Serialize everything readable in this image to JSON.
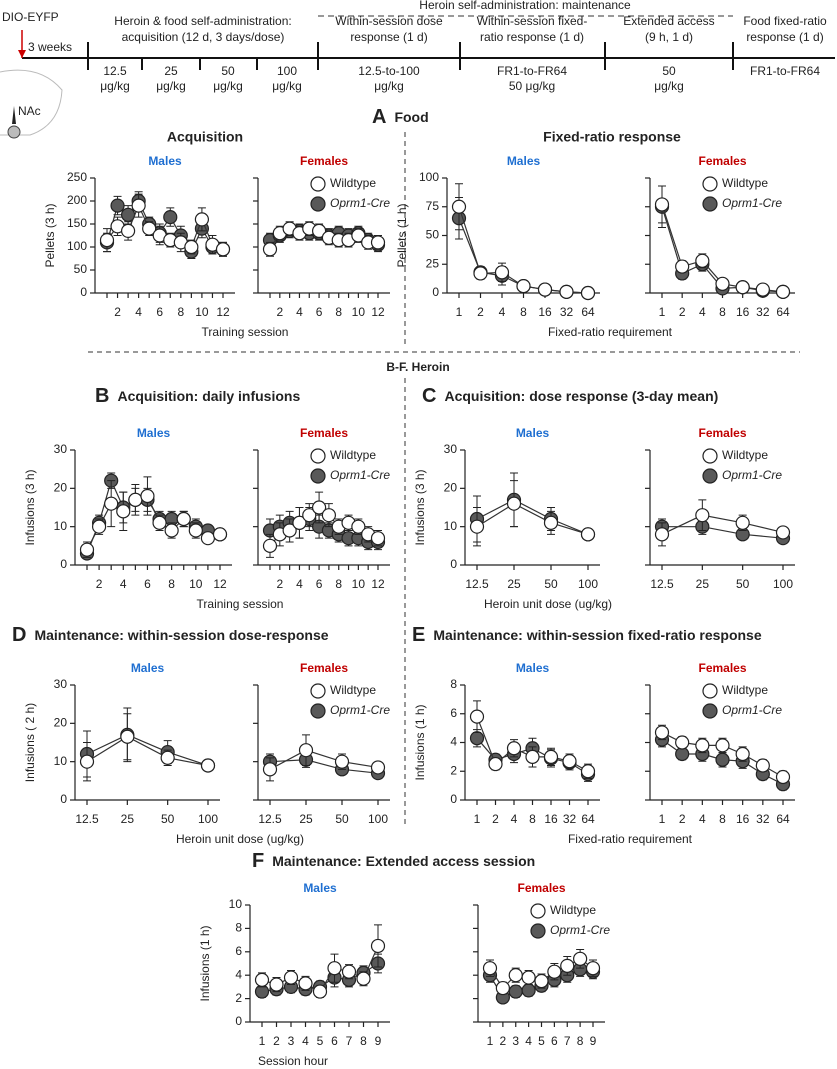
{
  "timeline": {
    "start": "DIO-EYFP",
    "weeks": "3 weeks",
    "maintenance": "Heroin self-administration: maintenance",
    "region": "NAc",
    "phases": [
      [
        "Heroin & food self-administration:",
        "acquisition (12 d, 3 days/dose)"
      ],
      [
        "Within-session dose",
        "response (1 d)"
      ],
      [
        "Within-session fixed-",
        "ratio response (1 d)"
      ],
      [
        "Extended access",
        "(9 h, 1 d)"
      ],
      [
        "Food fixed-ratio",
        "response (1 d)"
      ]
    ],
    "doses": [
      [
        "12.5",
        "μg/kg"
      ],
      [
        "25",
        "μg/kg"
      ],
      [
        "50",
        "μg/kg"
      ],
      [
        "100",
        "μg/kg"
      ],
      [
        "12.5-to-100",
        "μg/kg"
      ],
      [
        "FR1-to-FR64",
        "50 μg/kg"
      ],
      [
        "50",
        "μg/kg"
      ],
      [
        "FR1-to-FR64"
      ]
    ]
  },
  "headings": [
    {
      "letter": "A",
      "title": "Food"
    },
    {
      "letter": "B",
      "title": "Acquisition:  daily infusions"
    },
    {
      "letter": "C",
      "title": "Acquisition:  dose response (3-day mean)"
    },
    {
      "letter": "D",
      "title": "Maintenance: within-session  dose-response"
    },
    {
      "letter": "E",
      "title": "Maintenance: within-session  fixed-ratio response"
    },
    {
      "letter": "F",
      "title": "Maintenance: Extended access session"
    }
  ],
  "subtitles": [
    "Acquisition",
    "Fixed-ratio response"
  ],
  "heroin": "B-F. Heroin",
  "chart_data": [
    {
      "type": "line",
      "title": "Males",
      "title_color": "#1f6fd1",
      "ylabel": "Pellets (3 h)",
      "xlabel": "Training session",
      "categories": [
        null,
        "2",
        null,
        "4",
        null,
        "6",
        null,
        "8",
        null,
        "10",
        null,
        "12"
      ],
      "ylim": [
        0,
        250
      ],
      "yticks": [
        0,
        50,
        100,
        150,
        200,
        250
      ],
      "series": [
        {
          "color": "#595959",
          "values": [
            110,
            190,
            170,
            200,
            150,
            130,
            165,
            125,
            90,
            140,
            100,
            95
          ],
          "errors": [
            20,
            20,
            20,
            20,
            15,
            20,
            20,
            20,
            15,
            20,
            15,
            15
          ]
        },
        {
          "color": "#ffffff",
          "values": [
            115,
            145,
            135,
            190,
            140,
            125,
            115,
            110,
            100,
            160,
            105,
            95
          ],
          "errors": [
            25,
            20,
            20,
            25,
            15,
            20,
            15,
            20,
            15,
            25,
            20,
            15
          ]
        }
      ]
    },
    {
      "type": "line",
      "title": "Females",
      "title_color": "#c00000",
      "categories": [
        null,
        "2",
        null,
        "4",
        null,
        "6",
        null,
        "8",
        null,
        "10",
        null,
        "12"
      ],
      "ylim": [
        0,
        250
      ],
      "yticks": [
        0,
        50,
        100,
        150,
        200,
        250
      ],
      "series": [
        {
          "name": "Oprm1-Cre",
          "color": "#595959",
          "values": [
            115,
            125,
            135,
            135,
            130,
            130,
            125,
            130,
            125,
            130,
            115,
            105
          ],
          "errors": [
            15,
            15,
            15,
            15,
            15,
            15,
            15,
            15,
            15,
            15,
            15,
            15
          ]
        },
        {
          "name": "Wildtype",
          "color": "#ffffff",
          "values": [
            95,
            130,
            140,
            130,
            140,
            135,
            120,
            115,
            115,
            125,
            110,
            110
          ],
          "errors": [
            15,
            15,
            15,
            15,
            15,
            15,
            15,
            15,
            15,
            15,
            15,
            15
          ]
        }
      ]
    },
    {
      "type": "line",
      "title": "Males",
      "title_color": "#1f6fd1",
      "ylabel": "Pellets (1 h)",
      "xlabel": "Fixed-ratio requirement",
      "categories": [
        "1",
        "2",
        "4",
        "8",
        "16",
        "32",
        "64"
      ],
      "ylim": [
        0,
        100
      ],
      "yticks": [
        0,
        25,
        50,
        75,
        100
      ],
      "series": [
        {
          "color": "#595959",
          "values": [
            65,
            18,
            15,
            6,
            3,
            1,
            0
          ],
          "errors": [
            18,
            5,
            8,
            3,
            2,
            2,
            1
          ]
        },
        {
          "color": "#ffffff",
          "values": [
            75,
            17,
            18,
            6,
            3,
            1,
            0
          ],
          "errors": [
            20,
            5,
            8,
            3,
            2,
            2,
            1
          ]
        }
      ]
    },
    {
      "type": "line",
      "title": "Females",
      "title_color": "#c00000",
      "categories": [
        "1",
        "2",
        "4",
        "8",
        "16",
        "32",
        "64"
      ],
      "ylim": [
        0,
        100
      ],
      "yticks": [
        0,
        25,
        50,
        75,
        100
      ],
      "series": [
        {
          "name": "Oprm1-Cre",
          "color": "#595959",
          "values": [
            75,
            17,
            25,
            4,
            5,
            2,
            1
          ],
          "errors": [
            18,
            5,
            6,
            3,
            2,
            2,
            1
          ]
        },
        {
          "name": "Wildtype",
          "color": "#ffffff",
          "values": [
            77,
            23,
            28,
            8,
            5,
            3,
            1
          ],
          "errors": [
            16,
            5,
            6,
            3,
            2,
            2,
            1
          ]
        }
      ]
    },
    {
      "type": "line",
      "title": "Males",
      "title_color": "#1f6fd1",
      "ylabel": "Infusions (3 h)",
      "xlabel": "Training session",
      "categories": [
        null,
        "2",
        null,
        "4",
        null,
        "6",
        null,
        "8",
        null,
        "10",
        null,
        "12"
      ],
      "ylim": [
        0,
        30
      ],
      "yticks": [
        0,
        10,
        20,
        30
      ],
      "series": [
        {
          "color": "#595959",
          "values": [
            3,
            11,
            22,
            15,
            17,
            17,
            12,
            12,
            12,
            10,
            9,
            8
          ],
          "errors": [
            1,
            2,
            2,
            4,
            3,
            3,
            2,
            2,
            2,
            2,
            1,
            1
          ]
        },
        {
          "color": "#ffffff",
          "values": [
            4,
            10,
            16,
            14,
            17,
            18,
            11,
            9,
            12,
            9,
            7,
            8
          ],
          "errors": [
            2,
            2,
            6,
            5,
            4,
            5,
            2,
            2,
            2,
            2,
            1,
            1
          ]
        }
      ]
    },
    {
      "type": "line",
      "title": "Females",
      "title_color": "#c00000",
      "categories": [
        null,
        "2",
        null,
        "4",
        null,
        "6",
        null,
        "8",
        null,
        "10",
        null,
        "12"
      ],
      "ylim": [
        0,
        30
      ],
      "yticks": [
        0,
        10,
        20,
        30
      ],
      "series": [
        {
          "name": "Oprm1-Cre",
          "color": "#595959",
          "values": [
            9,
            10,
            11,
            11,
            12,
            10,
            9,
            8,
            7,
            7,
            6,
            6
          ],
          "errors": [
            3,
            3,
            3,
            4,
            3,
            3,
            2,
            2,
            2,
            2,
            2,
            2
          ]
        },
        {
          "name": "Wildtype",
          "color": "#ffffff",
          "values": [
            5,
            8,
            9,
            11,
            13,
            15,
            13,
            10,
            11,
            10,
            8,
            7
          ],
          "errors": [
            3,
            3,
            3,
            4,
            3,
            4,
            3,
            2,
            2,
            2,
            2,
            2
          ]
        }
      ]
    },
    {
      "type": "line",
      "title": "Males",
      "title_color": "#1f6fd1",
      "ylabel": "Infusions (3 h)",
      "xlabel": "Heroin unit dose (ug/kg)",
      "categories": [
        "12.5",
        "25",
        "50",
        "100"
      ],
      "ylim": [
        0,
        30
      ],
      "yticks": [
        0,
        10,
        20,
        30
      ],
      "series": [
        {
          "color": "#595959",
          "values": [
            12,
            17,
            12,
            8
          ],
          "errors": [
            6,
            7,
            3,
            1
          ]
        },
        {
          "color": "#ffffff",
          "values": [
            10,
            16,
            11,
            8
          ],
          "errors": [
            5,
            6,
            3,
            1
          ]
        }
      ]
    },
    {
      "type": "line",
      "title": "Females",
      "title_color": "#c00000",
      "categories": [
        "12.5",
        "25",
        "50",
        "100"
      ],
      "ylim": [
        0,
        30
      ],
      "yticks": [
        0,
        10,
        20,
        30
      ],
      "series": [
        {
          "name": "Oprm1-Cre",
          "color": "#595959",
          "values": [
            10,
            10,
            8,
            7
          ],
          "errors": [
            2,
            2,
            1,
            1
          ]
        },
        {
          "name": "Wildtype",
          "color": "#ffffff",
          "values": [
            8,
            13,
            11,
            8.5
          ],
          "errors": [
            3,
            4,
            2,
            1
          ]
        }
      ]
    },
    {
      "type": "line",
      "title": "Males",
      "title_color": "#1f6fd1",
      "ylabel": "Infusions ( 2 h)",
      "xlabel": "Heroin unit dose (ug/kg)",
      "categories": [
        "12.5",
        "25",
        "50",
        "100"
      ],
      "ylim": [
        0,
        30
      ],
      "yticks": [
        0,
        10,
        20,
        30
      ],
      "series": [
        {
          "color": "#595959",
          "values": [
            12,
            17,
            12.5,
            9
          ],
          "errors": [
            6,
            7,
            3,
            1
          ]
        },
        {
          "color": "#ffffff",
          "values": [
            10,
            16.5,
            11,
            9
          ],
          "errors": [
            5,
            6,
            2,
            1
          ]
        }
      ]
    },
    {
      "type": "line",
      "title": "Females",
      "title_color": "#c00000",
      "categories": [
        "12.5",
        "25",
        "50",
        "100"
      ],
      "ylim": [
        0,
        30
      ],
      "yticks": [
        0,
        10,
        20,
        30
      ],
      "series": [
        {
          "name": "Oprm1-Cre",
          "color": "#595959",
          "values": [
            10,
            10.5,
            8,
            7
          ],
          "errors": [
            2,
            2,
            1,
            1
          ]
        },
        {
          "name": "Wildtype",
          "color": "#ffffff",
          "values": [
            8,
            13,
            10,
            8.5
          ],
          "errors": [
            3,
            4,
            2,
            1
          ]
        }
      ]
    },
    {
      "type": "line",
      "title": "Males",
      "title_color": "#1f6fd1",
      "ylabel": "Infusions (1 h)",
      "xlabel": "Fixed-ratio requirement",
      "categories": [
        "1",
        "2",
        "4",
        "8",
        "16",
        "32",
        "64"
      ],
      "ylim": [
        0,
        8
      ],
      "yticks": [
        0,
        2,
        4,
        6,
        8
      ],
      "series": [
        {
          "color": "#595959",
          "values": [
            4.3,
            2.8,
            3.2,
            3.6,
            2.9,
            2.6,
            1.8
          ],
          "errors": [
            0.6,
            0.4,
            0.6,
            0.7,
            0.6,
            0.5,
            0.5
          ]
        },
        {
          "color": "#ffffff",
          "values": [
            5.8,
            2.5,
            3.6,
            3.0,
            3.0,
            2.7,
            2.0
          ],
          "errors": [
            1.1,
            0.4,
            0.6,
            0.7,
            0.6,
            0.5,
            0.5
          ]
        }
      ]
    },
    {
      "type": "line",
      "title": "Females",
      "title_color": "#c00000",
      "categories": [
        "1",
        "2",
        "4",
        "8",
        "16",
        "32",
        "64"
      ],
      "ylim": [
        0,
        8
      ],
      "yticks": [
        0,
        2,
        4,
        6,
        8
      ],
      "series": [
        {
          "name": "Oprm1-Cre",
          "color": "#595959",
          "values": [
            4.2,
            3.2,
            3.2,
            2.8,
            2.7,
            1.8,
            1.1
          ],
          "errors": [
            0.5,
            0.4,
            0.5,
            0.5,
            0.5,
            0.4,
            0.4
          ]
        },
        {
          "name": "Wildtype",
          "color": "#ffffff",
          "values": [
            4.7,
            4.0,
            3.8,
            3.8,
            3.2,
            2.4,
            1.6
          ],
          "errors": [
            0.5,
            0.4,
            0.5,
            0.5,
            0.5,
            0.4,
            0.4
          ]
        }
      ]
    },
    {
      "type": "line",
      "title": "Males",
      "title_color": "#1f6fd1",
      "ylabel": "Infusions (1 h)",
      "xlabel": "Session hour",
      "categories": [
        "1",
        "2",
        "3",
        "4",
        "5",
        "6",
        "7",
        "8",
        "9"
      ],
      "ylim": [
        0,
        10
      ],
      "yticks": [
        0,
        2,
        4,
        6,
        8,
        10
      ],
      "series": [
        {
          "color": "#595959",
          "values": [
            2.6,
            2.8,
            3.0,
            2.8,
            3.0,
            3.8,
            3.6,
            4.2,
            5.0
          ],
          "errors": [
            0.5,
            0.5,
            0.5,
            0.5,
            0.5,
            0.8,
            0.6,
            0.6,
            0.8
          ]
        },
        {
          "color": "#ffffff",
          "values": [
            3.6,
            3.2,
            3.8,
            3.3,
            2.6,
            4.6,
            4.3,
            3.7,
            6.5
          ],
          "errors": [
            0.6,
            0.6,
            0.6,
            0.6,
            0.5,
            1.2,
            0.6,
            0.6,
            1.8
          ]
        }
      ]
    },
    {
      "type": "line",
      "title": "Females",
      "title_color": "#c00000",
      "categories": [
        "1",
        "2",
        "3",
        "4",
        "5",
        "6",
        "7",
        "8",
        "9"
      ],
      "ylim": [
        0,
        10
      ],
      "yticks": [
        0,
        2,
        4,
        6,
        8,
        10
      ],
      "series": [
        {
          "name": "Oprm1-Cre",
          "color": "#595959",
          "values": [
            4.0,
            2.1,
            2.6,
            2.7,
            3.1,
            3.6,
            4.0,
            4.5,
            4.3
          ],
          "errors": [
            0.6,
            0.4,
            0.5,
            0.5,
            0.5,
            0.6,
            0.6,
            0.6,
            0.6
          ]
        },
        {
          "name": "Wildtype",
          "color": "#ffffff",
          "values": [
            4.6,
            2.9,
            4.0,
            3.8,
            3.5,
            4.3,
            4.8,
            5.4,
            4.6
          ],
          "errors": [
            0.7,
            0.5,
            0.6,
            0.6,
            0.6,
            0.7,
            0.8,
            0.8,
            0.7
          ]
        }
      ]
    }
  ]
}
